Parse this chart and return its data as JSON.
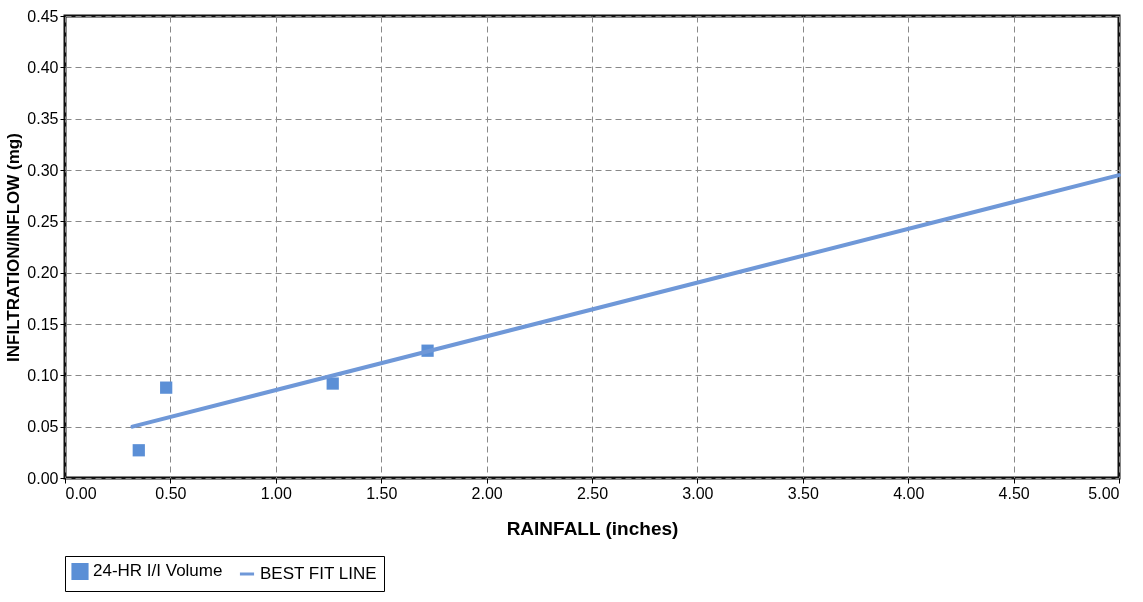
{
  "chart_data": {
    "type": "scatter",
    "xlabel": "RAINFALL (inches)",
    "ylabel": "INFILTRATION/INFLOW (mg)",
    "series": [
      {
        "name": "24-HR I/I Volume",
        "marker": "square",
        "color": "#5b8fd6",
        "x": [
          0.35,
          0.48,
          1.27,
          1.72
        ],
        "values": [
          0.027,
          0.088,
          0.092,
          0.124
        ]
      },
      {
        "name": "BEST FIT LINE",
        "type": "line",
        "marker": "none",
        "line_style": "solid",
        "color": "#6f98d8",
        "x": [
          0.32,
          5.0
        ],
        "values": [
          0.05,
          0.295
        ]
      }
    ],
    "xlim": [
      0,
      5
    ],
    "xticks": [
      {
        "value": 0,
        "label": "0.00"
      },
      {
        "value": 0.5,
        "label": "0.50"
      },
      {
        "value": 1,
        "label": "1.00"
      },
      {
        "value": 1.5,
        "label": "1.50"
      },
      {
        "value": 2,
        "label": "2.00"
      },
      {
        "value": 2.5,
        "label": "2.50"
      },
      {
        "value": 3,
        "label": "3.00"
      },
      {
        "value": 3.5,
        "label": "3.50"
      },
      {
        "value": 4,
        "label": "4.00"
      },
      {
        "value": 4.5,
        "label": "4.50"
      },
      {
        "value": 5,
        "label": "5.00"
      }
    ],
    "ylim": [
      0,
      0.45
    ],
    "yticks": [
      {
        "value": 0,
        "label": "0.00"
      },
      {
        "value": 0.05,
        "label": "0.05"
      },
      {
        "value": 0.1,
        "label": "0.10"
      },
      {
        "value": 0.15,
        "label": "0.15"
      },
      {
        "value": 0.2,
        "label": "0.20"
      },
      {
        "value": 0.25,
        "label": "0.25"
      },
      {
        "value": 0.3,
        "label": "0.30"
      },
      {
        "value": 0.35,
        "label": "0.35"
      },
      {
        "value": 0.4,
        "label": "0.40"
      },
      {
        "value": 0.45,
        "label": "0.45"
      }
    ],
    "grid": true,
    "legend": "bottom"
  }
}
